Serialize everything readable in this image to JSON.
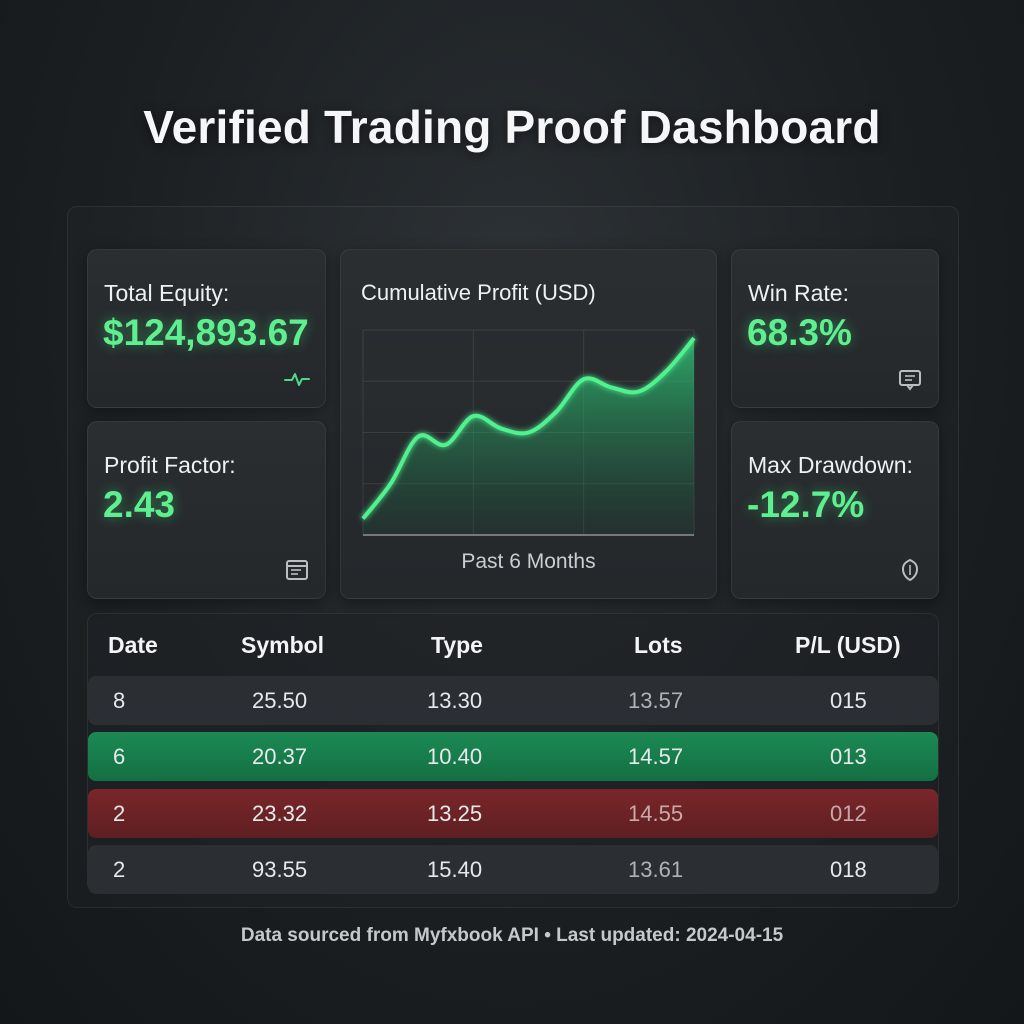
{
  "title": "Verified Trading Proof Dashboard",
  "cards": {
    "total_equity": {
      "label": "Total Equity:",
      "value": "$124,893.67"
    },
    "profit_factor": {
      "label": "Profit Factor:",
      "value": "2.43"
    },
    "win_rate": {
      "label": "Win Rate:",
      "value": "68.3%"
    },
    "max_drawdown": {
      "label": "Max Drawdown:",
      "value": "-12.7%"
    }
  },
  "chart": {
    "label": "Cumulative Profit (USD)",
    "subtitle": "Past 6 Months"
  },
  "chart_data": {
    "type": "area",
    "title": "Cumulative Profit (USD)",
    "xlabel": "Past 6 Months",
    "ylabel": "",
    "x": [
      0,
      0.5,
      1,
      1.5,
      2,
      2.5,
      3,
      3.5,
      4,
      4.5,
      5,
      5.5,
      6
    ],
    "y": [
      8,
      25,
      48,
      44,
      58,
      52,
      50,
      60,
      76,
      72,
      70,
      80,
      96
    ],
    "xlim": [
      0,
      6
    ],
    "ylim": [
      0,
      100
    ],
    "grid": true,
    "color": "#3ee07f"
  },
  "table": {
    "headers": [
      "Date",
      "Symbol",
      "Type",
      "Lots",
      "P/L (USD)"
    ],
    "rows": [
      {
        "cells": [
          "8",
          "25.50",
          "13.30",
          "13.57",
          "015"
        ],
        "status": "neutral"
      },
      {
        "cells": [
          "6",
          "20.37",
          "10.40",
          "14.57",
          "013"
        ],
        "status": "win"
      },
      {
        "cells": [
          "2",
          "23.32",
          "13.25",
          "14.55",
          "012"
        ],
        "status": "loss"
      },
      {
        "cells": [
          "2",
          "93.55",
          "15.40",
          "13.61",
          "018"
        ],
        "status": "neutral"
      }
    ]
  },
  "footer": "Data sourced from Myfxbook API • Last updated: 2024-04-15",
  "colors": {
    "accent": "#5ef08e",
    "win_row": "#167a4a",
    "loss_row": "#6e2326",
    "neutral_row": "#2b2f33"
  },
  "icons": [
    "pulse-icon",
    "document-icon",
    "chat-badge-icon",
    "shield-icon"
  ]
}
